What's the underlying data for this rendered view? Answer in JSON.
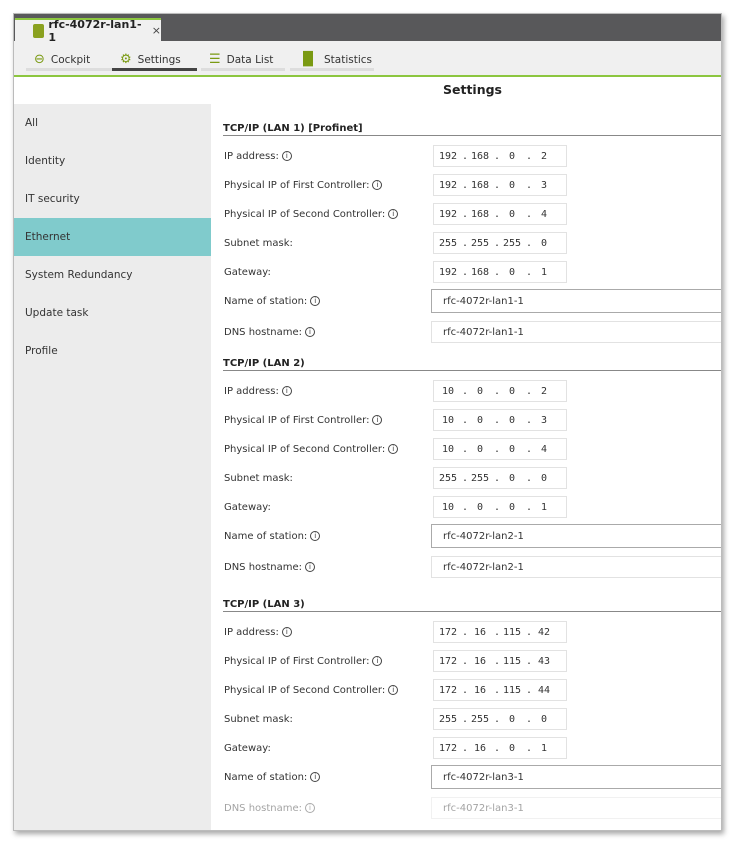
{
  "tab": {
    "title": "rfc-4072r-lan1-1",
    "close": "×"
  },
  "nav": [
    {
      "label": "Cockpit",
      "icon": "steering-wheel-icon"
    },
    {
      "label": "Settings",
      "icon": "settings-device-icon"
    },
    {
      "label": "Data List",
      "icon": "list-icon"
    },
    {
      "label": "Statistics",
      "icon": "bar-chart-icon"
    }
  ],
  "heading": "Settings",
  "sidebar": {
    "items": [
      {
        "label": "All"
      },
      {
        "label": "Identity"
      },
      {
        "label": "IT security"
      },
      {
        "label": "Ethernet",
        "active": true
      },
      {
        "label": "System Redundancy"
      },
      {
        "label": "Update task"
      },
      {
        "label": "Profile"
      }
    ]
  },
  "labels": {
    "ip": "IP address:",
    "first": "Physical IP of First Controller:",
    "second": "Physical IP of Second Controller:",
    "subnet": "Subnet mask:",
    "gateway": "Gateway:",
    "station": "Name of station:",
    "dns": "DNS hostname:",
    "info": "i"
  },
  "sections": [
    {
      "title": "TCP/IP (LAN 1) [Profinet]",
      "ip": [
        "192",
        "168",
        "0",
        "2"
      ],
      "first": [
        "192",
        "168",
        "0",
        "3"
      ],
      "second": [
        "192",
        "168",
        "0",
        "4"
      ],
      "subnet": [
        "255",
        "255",
        "255",
        "0"
      ],
      "gateway": [
        "192",
        "168",
        "0",
        "1"
      ],
      "station": "rfc-4072r-lan1-1",
      "dns": "rfc-4072r-lan1-1"
    },
    {
      "title": "TCP/IP (LAN 2)",
      "ip": [
        "10",
        "0",
        "0",
        "2"
      ],
      "first": [
        "10",
        "0",
        "0",
        "3"
      ],
      "second": [
        "10",
        "0",
        "0",
        "4"
      ],
      "subnet": [
        "255",
        "255",
        "0",
        "0"
      ],
      "gateway": [
        "10",
        "0",
        "0",
        "1"
      ],
      "station": "rfc-4072r-lan2-1",
      "dns": "rfc-4072r-lan2-1"
    },
    {
      "title": "TCP/IP (LAN 3)",
      "ip": [
        "172",
        "16",
        "115",
        "42"
      ],
      "first": [
        "172",
        "16",
        "115",
        "43"
      ],
      "second": [
        "172",
        "16",
        "115",
        "44"
      ],
      "subnet": [
        "255",
        "255",
        "0",
        "0"
      ],
      "gateway": [
        "172",
        "16",
        "0",
        "1"
      ],
      "station": "rfc-4072r-lan3-1",
      "dns": "rfc-4072r-lan3-1"
    }
  ],
  "colors": {
    "accent": "#8cc63f",
    "active_item": "#80cbcc"
  }
}
